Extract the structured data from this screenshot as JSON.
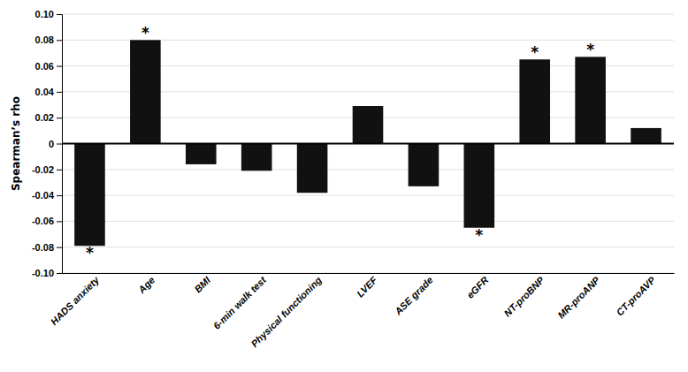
{
  "chart_data": {
    "type": "bar",
    "categories": [
      "HADS anxiety",
      "Age",
      "BMI",
      "6-min walk test",
      "Physical functioning",
      "LVEF",
      "ASE grade",
      "eGFR",
      "NT-proBNP",
      "MR-proANP",
      "CT-proAVP"
    ],
    "values": [
      -0.079,
      0.08,
      -0.016,
      -0.021,
      -0.038,
      0.029,
      -0.033,
      -0.065,
      0.065,
      0.067,
      0.012
    ],
    "color": "#111111",
    "y_label": "Spearman’s rho",
    "ylim": [
      -0.1,
      0.1
    ],
    "yticks": [
      {
        "value": -0.1,
        "label": "-0.10"
      },
      -0.08,
      -0.06,
      -0.04,
      -0.02,
      0,
      0.02,
      0.04,
      0.06,
      0.08,
      {
        "value": 0.1,
        "label": "0.10"
      }
    ],
    "grid": true,
    "annotations": [
      {
        "text": "*",
        "category": "HADS anxiety"
      },
      {
        "text": "*",
        "category": "Age"
      },
      {
        "text": "*",
        "category": "eGFR"
      },
      {
        "text": "*",
        "category": "NT-proBNP"
      },
      {
        "text": "*",
        "category": "MR-proANP"
      }
    ]
  }
}
